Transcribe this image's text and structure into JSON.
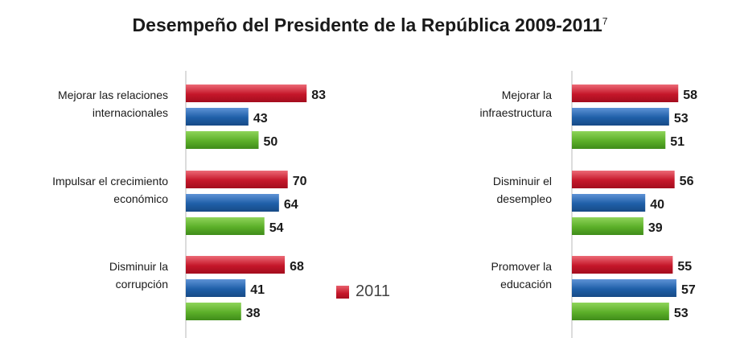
{
  "title": "Desempeño del Presidente de la República 2009-2011",
  "title_footnote": "7",
  "legend": {
    "label": "2011",
    "color": "#c5172a"
  },
  "colors": {
    "2011": "#c5172a",
    "2010": "#1f5fa8",
    "2009": "#5caf29"
  },
  "chart_data": [
    {
      "type": "bar",
      "orientation": "horizontal",
      "categories": [
        [
          "Mejorar las relaciones",
          "internacionales"
        ],
        [
          "Impulsar el crecimiento",
          "económico"
        ],
        [
          "Disminuir la",
          "corrupción"
        ]
      ],
      "series": [
        {
          "name": "2011",
          "values": [
            83,
            70,
            68
          ]
        },
        {
          "values": [
            43,
            64,
            41
          ]
        },
        {
          "values": [
            50,
            54,
            38
          ]
        }
      ]
    },
    {
      "type": "bar",
      "orientation": "horizontal",
      "categories": [
        [
          "Mejorar la",
          "infraestructura"
        ],
        [
          "Disminuir el",
          "desempleo"
        ],
        [
          "Promover la",
          "educación"
        ]
      ],
      "series": [
        {
          "name": "2011",
          "values": [
            58,
            56,
            55
          ]
        },
        {
          "values": [
            53,
            40,
            57
          ]
        },
        {
          "values": [
            51,
            39,
            53
          ]
        }
      ]
    }
  ]
}
